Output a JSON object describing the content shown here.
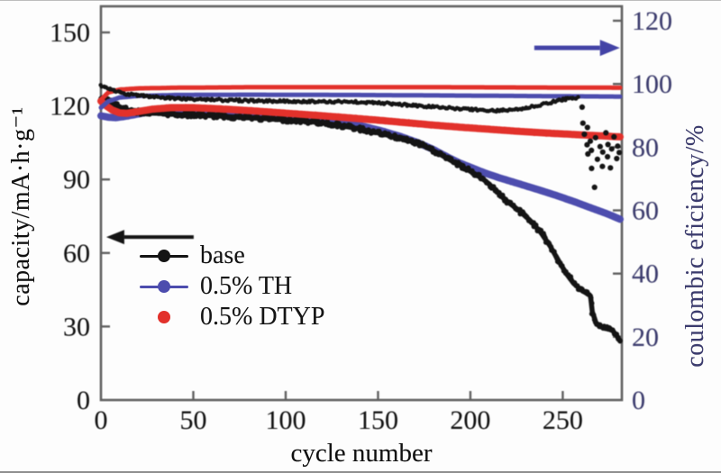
{
  "chart_data": {
    "type": "scatter",
    "title": "",
    "xlabel": "cycle number",
    "ylabel_left": "capacity/mA·h·g⁻¹",
    "ylabel_right": "coulombic eficiency/%",
    "xlim": [
      0,
      282
    ],
    "x_ticks": [
      0,
      50,
      100,
      150,
      200,
      250
    ],
    "ylim_left": [
      0,
      160
    ],
    "left_ticks": [
      0,
      30,
      60,
      90,
      120,
      150
    ],
    "ylim_right": [
      0,
      120
    ],
    "right_ticks": [
      0,
      20,
      40,
      60,
      80,
      100,
      120
    ],
    "frame_color": "#606060",
    "axis_color_left": "#111111",
    "axis_color_right": "#3b3b6e",
    "grid": false,
    "legend_position": "inside-left",
    "legend": [
      {
        "label": "base",
        "color": "#141414",
        "marker": "line-dot"
      },
      {
        "label": "0.5% TH",
        "color": "#4d4dae",
        "marker": "line-dot"
      },
      {
        "label": "0.5% DTYP",
        "color": "#e2312b",
        "marker": "dot"
      }
    ],
    "annotations": {
      "arrows": [
        {
          "name": "capacity-axis-arrow",
          "axis": "left",
          "x_from": 50.2,
          "x_to": 2.9,
          "y": 66.5,
          "color": "#141414",
          "width": 4,
          "head": 20,
          "head_w": 8
        },
        {
          "name": "efficiency-axis-arrow",
          "axis": "right",
          "x_from": 234.6,
          "x_to": 280.9,
          "y": 111.4,
          "color": "#4343a6",
          "width": 5,
          "head": 22,
          "head_w": 9
        }
      ]
    },
    "series": [
      {
        "name": "0.5% TH",
        "quantity": "capacity",
        "axis": "left",
        "color": "#4d4dae",
        "style": "band",
        "points": [
          [
            0,
            116
          ],
          [
            4,
            115.4
          ],
          [
            8,
            115.2
          ],
          [
            12,
            115.6
          ],
          [
            18,
            116.4
          ],
          [
            25,
            117.4
          ],
          [
            33,
            118.1
          ],
          [
            42,
            118.5
          ],
          [
            52,
            118.5
          ],
          [
            62,
            118.3
          ],
          [
            72,
            117.9
          ],
          [
            82,
            117.5
          ],
          [
            92,
            117
          ],
          [
            102,
            116.4
          ],
          [
            112,
            115.7
          ],
          [
            122,
            114.7
          ],
          [
            132,
            113.3
          ],
          [
            142,
            111.7
          ],
          [
            152,
            109.8
          ],
          [
            162,
            107.6
          ],
          [
            172,
            104.9
          ],
          [
            180,
            102.2
          ],
          [
            188,
            99
          ],
          [
            194,
            96.8
          ],
          [
            200,
            95
          ],
          [
            208,
            92.6
          ],
          [
            216,
            90.6
          ],
          [
            226,
            88.3
          ],
          [
            236,
            86
          ],
          [
            246,
            83.6
          ],
          [
            256,
            81
          ],
          [
            266,
            78.2
          ],
          [
            274,
            76
          ],
          [
            281,
            73.8
          ]
        ]
      },
      {
        "name": "base",
        "quantity": "capacity",
        "axis": "left",
        "color": "#141414",
        "style": "band-dots",
        "points": [
          [
            0,
            123
          ],
          [
            4,
            122
          ],
          [
            8,
            120.5
          ],
          [
            12,
            119
          ],
          [
            16,
            118
          ],
          [
            22,
            117.3
          ],
          [
            30,
            117
          ],
          [
            40,
            116.6
          ],
          [
            50,
            116.3
          ],
          [
            60,
            116
          ],
          [
            70,
            115.6
          ],
          [
            80,
            115.2
          ],
          [
            90,
            114.8
          ],
          [
            100,
            114.3
          ],
          [
            110,
            113.8
          ],
          [
            120,
            113.1
          ],
          [
            130,
            112
          ],
          [
            140,
            110.6
          ],
          [
            150,
            109
          ],
          [
            158,
            107.6
          ],
          [
            166,
            106
          ],
          [
            174,
            104
          ],
          [
            182,
            101
          ],
          [
            190,
            97.5
          ],
          [
            196,
            95
          ],
          [
            202,
            92.5
          ],
          [
            208,
            89.5
          ],
          [
            214,
            85.5
          ],
          [
            220,
            81
          ],
          [
            226,
            77.5
          ],
          [
            232,
            73.5
          ],
          [
            238,
            68.5
          ],
          [
            243,
            63
          ],
          [
            248,
            56.5
          ],
          [
            252,
            51.5
          ],
          [
            256,
            47.5
          ],
          [
            260,
            45
          ],
          [
            263,
            43.5
          ],
          [
            265,
            42.5
          ],
          [
            266,
            36
          ],
          [
            268,
            31.5
          ],
          [
            271,
            29.8
          ],
          [
            274,
            29.2
          ],
          [
            277,
            28.3
          ],
          [
            279,
            26.5
          ],
          [
            281,
            24
          ]
        ]
      },
      {
        "name": "0.5% DTYP",
        "quantity": "capacity",
        "axis": "left",
        "color": "#e2312b",
        "style": "band",
        "points": [
          [
            0,
            122
          ],
          [
            3,
            120
          ],
          [
            6,
            118.4
          ],
          [
            10,
            117.2
          ],
          [
            14,
            117
          ],
          [
            20,
            117.7
          ],
          [
            28,
            118.7
          ],
          [
            38,
            119.3
          ],
          [
            50,
            119.3
          ],
          [
            62,
            118.9
          ],
          [
            76,
            118.3
          ],
          [
            90,
            117.6
          ],
          [
            105,
            116.8
          ],
          [
            120,
            116
          ],
          [
            135,
            115.1
          ],
          [
            150,
            114.2
          ],
          [
            165,
            113.2
          ],
          [
            180,
            112.2
          ],
          [
            195,
            111.3
          ],
          [
            210,
            110.5
          ],
          [
            225,
            109.7
          ],
          [
            240,
            109
          ],
          [
            255,
            108.4
          ],
          [
            268,
            107.9
          ],
          [
            281,
            107.4
          ]
        ]
      },
      {
        "name": "0.5% TH",
        "quantity": "coulombic efficiency",
        "axis": "right",
        "color": "#4d4dae",
        "style": "line",
        "points": [
          [
            0,
            92.5
          ],
          [
            4,
            94.5
          ],
          [
            10,
            95.7
          ],
          [
            20,
            96.2
          ],
          [
            40,
            96.5
          ],
          [
            80,
            96.6
          ],
          [
            140,
            96.5
          ],
          [
            200,
            96.3
          ],
          [
            281,
            96
          ]
        ]
      },
      {
        "name": "0.5% DTYP",
        "quantity": "coulombic efficiency",
        "axis": "right",
        "color": "#e2312b",
        "style": "line",
        "points": [
          [
            0,
            95
          ],
          [
            4,
            97.3
          ],
          [
            10,
            98.2
          ],
          [
            20,
            98.6
          ],
          [
            40,
            98.8
          ],
          [
            90,
            99
          ],
          [
            160,
            99
          ],
          [
            220,
            98.9
          ],
          [
            281,
            98.8
          ]
        ]
      },
      {
        "name": "base",
        "quantity": "coulombic efficiency",
        "axis": "right",
        "color": "#141414",
        "style": "dots",
        "points": [
          [
            0,
            99.5
          ],
          [
            6,
            98
          ],
          [
            14,
            96.8
          ],
          [
            25,
            96
          ],
          [
            40,
            95.4
          ],
          [
            60,
            95
          ],
          [
            80,
            94.7
          ],
          [
            100,
            94.5
          ],
          [
            130,
            94.4
          ],
          [
            150,
            94.1
          ],
          [
            162,
            93.5
          ],
          [
            174,
            93
          ],
          [
            186,
            92.5
          ],
          [
            196,
            92.1
          ],
          [
            206,
            91.8
          ],
          [
            214,
            91.5
          ],
          [
            222,
            91.8
          ],
          [
            230,
            92.4
          ],
          [
            238,
            93.4
          ],
          [
            246,
            94.5
          ],
          [
            252,
            95.2
          ],
          [
            258,
            95.7
          ]
        ],
        "scatter": [
          [
            260,
            93
          ],
          [
            261,
            87.5
          ],
          [
            262,
            84
          ],
          [
            263,
            80.5
          ],
          [
            263.5,
            86
          ],
          [
            264,
            77.5
          ],
          [
            265,
            82
          ],
          [
            265.5,
            73.5
          ],
          [
            266,
            79
          ],
          [
            267,
            67.5
          ],
          [
            268,
            83
          ],
          [
            269,
            76
          ],
          [
            270,
            80.5
          ],
          [
            271,
            74
          ],
          [
            272,
            78.5
          ],
          [
            273,
            84.5
          ],
          [
            274,
            77
          ],
          [
            275,
            81
          ],
          [
            276,
            73.5
          ],
          [
            277,
            79.5
          ],
          [
            278,
            83
          ],
          [
            279,
            76.5
          ],
          [
            280,
            80
          ],
          [
            281,
            78
          ]
        ]
      }
    ]
  }
}
